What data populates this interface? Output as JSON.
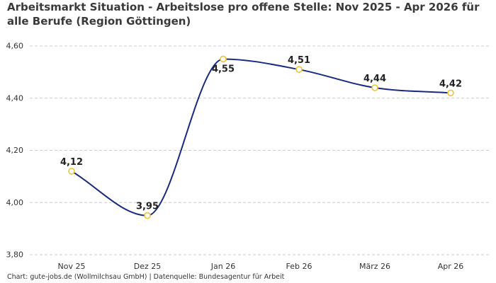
{
  "chart_data": {
    "type": "line",
    "title": "Arbeitsmarkt Situation - Arbeitslose pro offene Stelle: Nov 2025 - Apr 2026 für alle Berufe (Region Göttingen)",
    "categories": [
      "Nov 25",
      "Dez 25",
      "Jan 26",
      "Feb 26",
      "März 26",
      "Apr 26"
    ],
    "series": [
      {
        "values": [
          4.12,
          3.95,
          4.55,
          4.51,
          4.44,
          4.42
        ],
        "labels": [
          "4,12",
          "3,95",
          "4,55",
          "4,51",
          "4,44",
          "4,42"
        ]
      }
    ],
    "yticks": [
      3.8,
      4.0,
      4.2,
      4.4,
      4.6
    ],
    "ytick_labels": [
      "3,80",
      "4,00",
      "4,20",
      "4,40",
      "4,60"
    ],
    "ylim": [
      3.8,
      4.6
    ],
    "grid": "horizontal dashed",
    "source": "Chart: gute-jobs.de (Wollmilchsau GmbH) | Datenquelle: Bundesagentur für Arbeit",
    "colors": {
      "line": "#1a2a80",
      "marker": "#f2c233",
      "grid": "#cccccc"
    }
  }
}
